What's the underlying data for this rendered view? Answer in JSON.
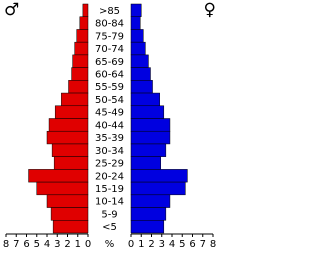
{
  "chart_data": {
    "type": "pyramid",
    "categories": [
      ">85",
      "80-84",
      "75-79",
      "70-74",
      "65-69",
      "60-64",
      "55-59",
      "50-54",
      "45-49",
      "40-44",
      "35-39",
      "30-34",
      "25-29",
      "20-24",
      "15-19",
      "10-14",
      "5-9",
      "<5"
    ],
    "series": [
      {
        "name": "♂",
        "color": "#e00000",
        "values": [
          0.5,
          0.8,
          1.1,
          1.3,
          1.5,
          1.6,
          1.9,
          2.6,
          3.2,
          3.8,
          4.0,
          3.5,
          3.3,
          5.8,
          5.0,
          4.0,
          3.6,
          3.4
        ]
      },
      {
        "name": "♀",
        "color": "#0000e0",
        "values": [
          1.0,
          0.9,
          1.2,
          1.4,
          1.7,
          1.9,
          2.1,
          2.8,
          3.2,
          3.8,
          3.8,
          3.4,
          2.9,
          5.5,
          5.3,
          3.8,
          3.4,
          3.2
        ]
      }
    ],
    "x_label": "%",
    "xlim": [
      0,
      8
    ],
    "xticks": [
      0,
      1,
      2,
      3,
      4,
      5,
      6,
      7,
      8
    ]
  }
}
